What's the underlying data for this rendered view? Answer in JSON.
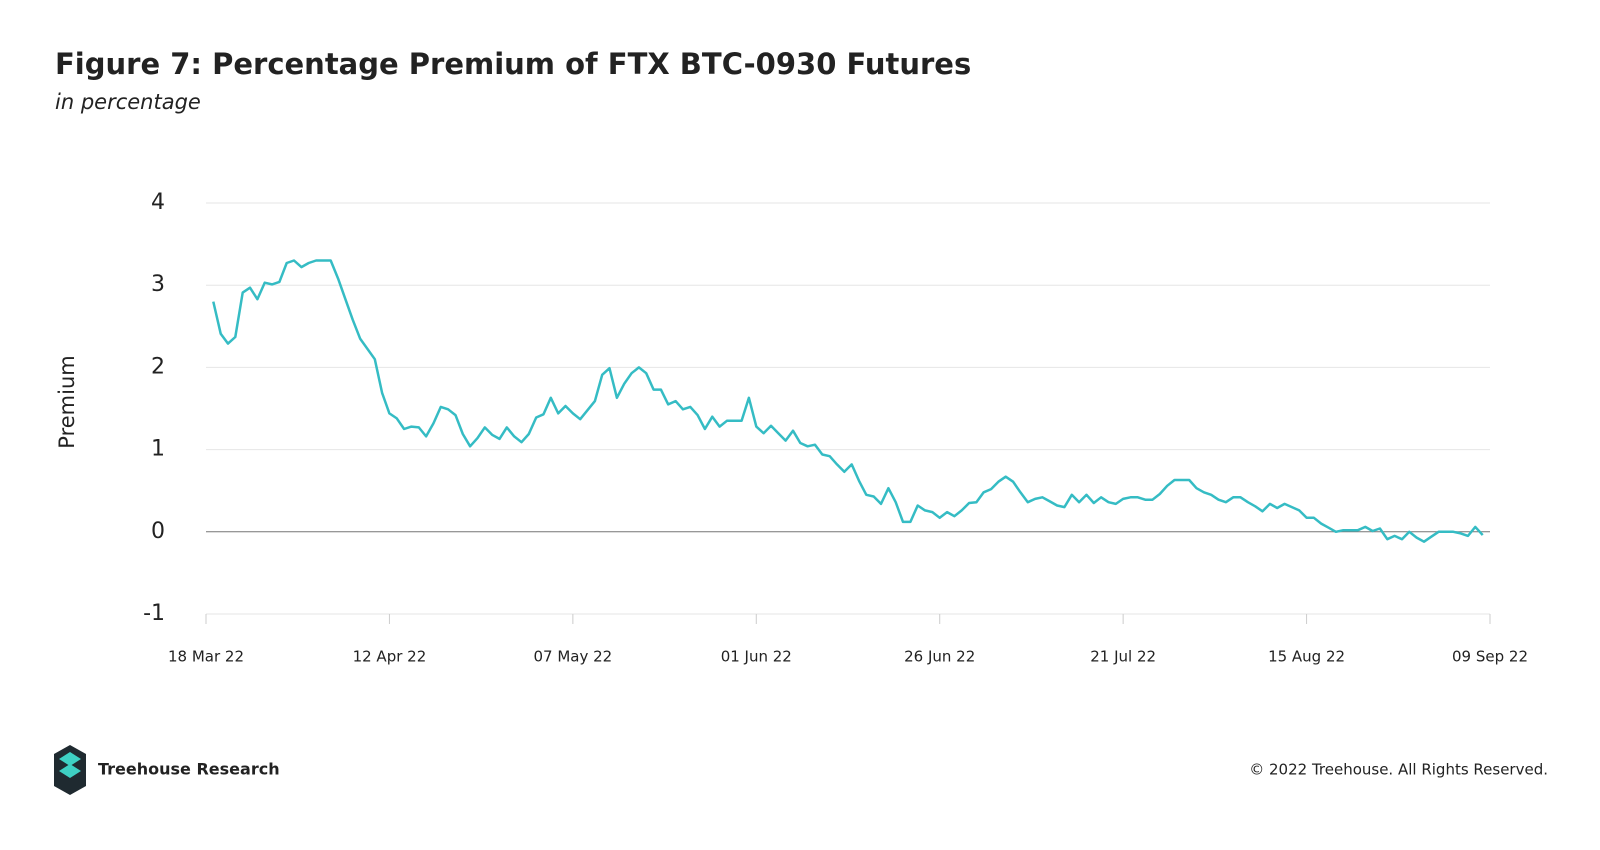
{
  "chart_data": {
    "type": "line",
    "title": "Figure 7: Percentage Premium of FTX BTC-0930 Futures",
    "subtitle": "in percentage",
    "y_label": "Premium",
    "x": [
      "2022-03-19",
      "2022-03-20",
      "2022-03-21",
      "2022-03-22",
      "2022-03-23",
      "2022-03-24",
      "2022-03-25",
      "2022-03-26",
      "2022-03-27",
      "2022-03-28",
      "2022-03-29",
      "2022-03-30",
      "2022-03-31",
      "2022-04-01",
      "2022-04-02",
      "2022-04-04",
      "2022-04-05",
      "2022-04-06",
      "2022-04-07",
      "2022-04-08",
      "2022-04-10",
      "2022-04-11",
      "2022-04-12",
      "2022-04-13",
      "2022-04-14",
      "2022-04-15",
      "2022-04-16",
      "2022-04-17",
      "2022-04-18",
      "2022-04-19",
      "2022-04-20",
      "2022-04-21",
      "2022-04-22",
      "2022-04-23",
      "2022-04-24",
      "2022-04-25",
      "2022-04-26",
      "2022-04-27",
      "2022-04-28",
      "2022-04-29",
      "2022-04-30",
      "2022-05-01",
      "2022-05-02",
      "2022-05-03",
      "2022-05-04",
      "2022-05-05",
      "2022-05-06",
      "2022-05-07",
      "2022-05-08",
      "2022-05-10",
      "2022-05-11",
      "2022-05-12",
      "2022-05-13",
      "2022-05-14",
      "2022-05-15",
      "2022-05-16",
      "2022-05-17",
      "2022-05-18",
      "2022-05-19",
      "2022-05-20",
      "2022-05-21",
      "2022-05-22",
      "2022-05-23",
      "2022-05-24",
      "2022-05-25",
      "2022-05-26",
      "2022-05-27",
      "2022-05-28",
      "2022-05-30",
      "2022-05-31",
      "2022-06-01",
      "2022-06-02",
      "2022-06-03",
      "2022-06-04",
      "2022-06-05",
      "2022-06-06",
      "2022-06-07",
      "2022-06-08",
      "2022-06-09",
      "2022-06-10",
      "2022-06-11",
      "2022-06-12",
      "2022-06-13",
      "2022-06-14",
      "2022-06-15",
      "2022-06-16",
      "2022-06-17",
      "2022-06-18",
      "2022-06-19",
      "2022-06-20",
      "2022-06-21",
      "2022-06-22",
      "2022-06-23",
      "2022-06-24",
      "2022-06-25",
      "2022-06-26",
      "2022-06-27",
      "2022-06-28",
      "2022-06-29",
      "2022-06-30",
      "2022-07-01",
      "2022-07-02",
      "2022-07-03",
      "2022-07-04",
      "2022-07-05",
      "2022-07-06",
      "2022-07-07",
      "2022-07-08",
      "2022-07-09",
      "2022-07-10",
      "2022-07-11",
      "2022-07-12",
      "2022-07-13",
      "2022-07-14",
      "2022-07-15",
      "2022-07-16",
      "2022-07-17",
      "2022-07-18",
      "2022-07-19",
      "2022-07-20",
      "2022-07-21",
      "2022-07-22",
      "2022-07-23",
      "2022-07-24",
      "2022-07-25",
      "2022-07-26",
      "2022-07-27",
      "2022-07-28",
      "2022-07-30",
      "2022-07-31",
      "2022-08-01",
      "2022-08-02",
      "2022-08-03",
      "2022-08-04",
      "2022-08-05",
      "2022-08-06",
      "2022-08-07",
      "2022-08-08",
      "2022-08-09",
      "2022-08-10",
      "2022-08-11",
      "2022-08-12",
      "2022-08-13",
      "2022-08-14",
      "2022-08-15",
      "2022-08-16",
      "2022-08-17",
      "2022-08-18",
      "2022-08-19",
      "2022-08-20",
      "2022-08-22",
      "2022-08-23",
      "2022-08-24",
      "2022-08-25",
      "2022-08-26",
      "2022-08-27",
      "2022-08-28",
      "2022-08-29",
      "2022-08-30",
      "2022-08-31",
      "2022-09-01",
      "2022-09-02",
      "2022-09-04",
      "2022-09-05",
      "2022-09-06",
      "2022-09-07",
      "2022-09-08"
    ],
    "series": [
      {
        "name": "Premium",
        "color": "#35bcc4",
        "values": [
          2.8,
          2.41,
          2.29,
          2.37,
          2.91,
          2.97,
          2.83,
          3.03,
          3.01,
          3.04,
          3.27,
          3.3,
          3.22,
          3.27,
          3.3,
          3.3,
          3.08,
          2.83,
          2.58,
          2.35,
          2.1,
          1.69,
          1.44,
          1.38,
          1.25,
          1.28,
          1.27,
          1.16,
          1.32,
          1.52,
          1.49,
          1.42,
          1.19,
          1.04,
          1.14,
          1.27,
          1.18,
          1.13,
          1.27,
          1.16,
          1.09,
          1.19,
          1.39,
          1.43,
          1.63,
          1.44,
          1.53,
          1.44,
          1.37,
          1.59,
          1.91,
          1.99,
          1.63,
          1.8,
          1.93,
          2.0,
          1.93,
          1.73,
          1.73,
          1.55,
          1.59,
          1.49,
          1.52,
          1.42,
          1.25,
          1.4,
          1.28,
          1.35,
          1.35,
          1.63,
          1.28,
          1.2,
          1.29,
          1.2,
          1.11,
          1.23,
          1.08,
          1.04,
          1.06,
          0.94,
          0.92,
          0.82,
          0.73,
          0.82,
          0.62,
          0.45,
          0.43,
          0.34,
          0.53,
          0.36,
          0.12,
          0.12,
          0.32,
          0.26,
          0.24,
          0.17,
          0.24,
          0.19,
          0.26,
          0.35,
          0.36,
          0.48,
          0.52,
          0.61,
          0.67,
          0.61,
          0.48,
          0.36,
          0.4,
          0.42,
          0.37,
          0.32,
          0.3,
          0.45,
          0.36,
          0.45,
          0.35,
          0.42,
          0.36,
          0.34,
          0.4,
          0.42,
          0.42,
          0.39,
          0.39,
          0.46,
          0.56,
          0.63,
          0.63,
          0.53,
          0.48,
          0.45,
          0.39,
          0.36,
          0.42,
          0.42,
          0.36,
          0.31,
          0.25,
          0.34,
          0.29,
          0.34,
          0.3,
          0.26,
          0.17,
          0.17,
          0.1,
          0.05,
          0.0,
          0.02,
          0.02,
          0.06,
          0.01,
          0.04,
          -0.09,
          -0.05,
          -0.09,
          0.0,
          -0.07,
          -0.12,
          -0.06,
          0.0,
          0.0,
          -0.02,
          -0.05,
          0.06,
          -0.04
        ]
      }
    ],
    "xlim": [
      "2022-03-18",
      "2022-09-09"
    ],
    "xticks": [
      {
        "value": "2022-03-18",
        "label": "18 Mar 22"
      },
      {
        "value": "2022-04-12",
        "label": "12 Apr 22"
      },
      {
        "value": "2022-05-07",
        "label": "07 May 22"
      },
      {
        "value": "2022-06-01",
        "label": "01 Jun 22"
      },
      {
        "value": "2022-06-26",
        "label": "26 Jun 22"
      },
      {
        "value": "2022-07-21",
        "label": "21 Jul 22"
      },
      {
        "value": "2022-08-15",
        "label": "15 Aug 22"
      },
      {
        "value": "2022-09-09",
        "label": "09 Sep 22"
      }
    ],
    "ylim": [
      -1,
      4
    ],
    "yticks": [
      -1,
      0,
      1,
      2,
      3,
      4
    ],
    "grid": true
  },
  "footer": {
    "brand": "Treehouse Research",
    "copyright": "© 2022 Treehouse. All Rights Reserved."
  }
}
